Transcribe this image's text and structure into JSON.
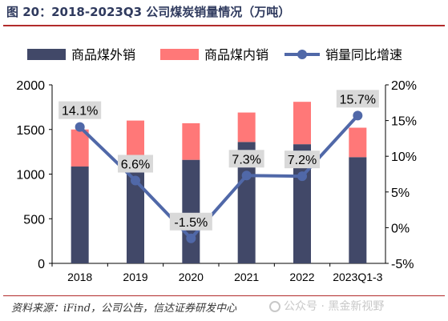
{
  "header": {
    "title": "图 20：2018-2023Q3 公司煤炭销量情况（万吨）"
  },
  "footer": {
    "source": "资料来源：iFind，公司公告，信达证券研发中心",
    "watermark": "公众号 · 黑金新视野"
  },
  "colors": {
    "export": "#414868",
    "domestic": "#ff7878",
    "growth": "#5068a8",
    "title": "#2f3a5e",
    "rule": "#b22b2b"
  },
  "chart_data": {
    "type": "bar",
    "stacked": true,
    "title": "",
    "xlabel": "",
    "ylabel": "",
    "categories": [
      "2018",
      "2019",
      "2020",
      "2021",
      "2022",
      "2023Q1-3"
    ],
    "series": [
      {
        "name": "商品煤外销",
        "type": "bar",
        "axis": "left",
        "values": [
          1085,
          1075,
          1160,
          1360,
          1335,
          1190
        ]
      },
      {
        "name": "商品煤内销",
        "type": "bar",
        "axis": "left",
        "values": [
          415,
          525,
          410,
          330,
          475,
          330
        ]
      },
      {
        "name": "销量同比增速",
        "type": "line",
        "axis": "right",
        "values": [
          14.1,
          6.6,
          -1.5,
          7.3,
          7.2,
          15.7
        ],
        "labels": [
          "14.1%",
          "6.6%",
          "-1.5%",
          "7.3%",
          "7.2%",
          "15.7%"
        ]
      }
    ],
    "y_left": {
      "min": 0,
      "max": 2000,
      "ticks": [
        0,
        500,
        1000,
        1500,
        2000
      ]
    },
    "y_right": {
      "min": -5,
      "max": 20,
      "ticks": [
        -5,
        0,
        5,
        10,
        15,
        20
      ],
      "unit": "%"
    },
    "legend_position": "top",
    "grid": false
  }
}
